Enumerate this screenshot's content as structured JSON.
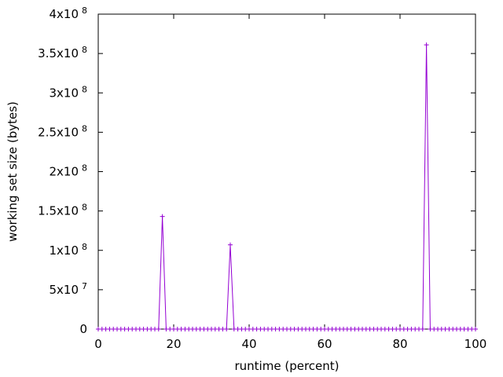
{
  "chart_data": {
    "type": "line",
    "title": "",
    "xlabel": "runtime (percent)",
    "ylabel": "working set size (bytes)",
    "xlim": [
      0,
      100
    ],
    "ylim": [
      0,
      400000000
    ],
    "x_ticks": [
      {
        "value": 0,
        "label": "0"
      },
      {
        "value": 20,
        "label": "20"
      },
      {
        "value": 40,
        "label": "40"
      },
      {
        "value": 60,
        "label": "60"
      },
      {
        "value": 80,
        "label": "80"
      },
      {
        "value": 100,
        "label": "100"
      }
    ],
    "y_ticks": [
      {
        "value": 0,
        "mantissa": "0",
        "exp": ""
      },
      {
        "value": 50000000,
        "mantissa": "5x10",
        "exp": "7"
      },
      {
        "value": 100000000,
        "mantissa": "1x10",
        "exp": "8"
      },
      {
        "value": 150000000,
        "mantissa": "1.5x10",
        "exp": "8"
      },
      {
        "value": 200000000,
        "mantissa": "2x10",
        "exp": "8"
      },
      {
        "value": 250000000,
        "mantissa": "2.5x10",
        "exp": "8"
      },
      {
        "value": 300000000,
        "mantissa": "3x10",
        "exp": "8"
      },
      {
        "value": 350000000,
        "mantissa": "3.5x10",
        "exp": "8"
      },
      {
        "value": 400000000,
        "mantissa": "4x10",
        "exp": "8"
      }
    ],
    "grid": false,
    "legend": "none",
    "series": [
      {
        "color": "#9400d3",
        "marker": "plus",
        "points": [
          [
            0,
            0
          ],
          [
            1,
            0
          ],
          [
            2,
            0
          ],
          [
            3,
            0
          ],
          [
            4,
            0
          ],
          [
            5,
            0
          ],
          [
            6,
            0
          ],
          [
            7,
            0
          ],
          [
            8,
            0
          ],
          [
            9,
            0
          ],
          [
            10,
            0
          ],
          [
            11,
            0
          ],
          [
            12,
            0
          ],
          [
            13,
            0
          ],
          [
            14,
            0
          ],
          [
            15,
            0
          ],
          [
            16,
            0
          ],
          [
            17,
            143000000
          ],
          [
            18,
            0
          ],
          [
            19,
            0
          ],
          [
            20,
            0
          ],
          [
            21,
            0
          ],
          [
            22,
            0
          ],
          [
            23,
            0
          ],
          [
            24,
            0
          ],
          [
            25,
            0
          ],
          [
            26,
            0
          ],
          [
            27,
            0
          ],
          [
            28,
            0
          ],
          [
            29,
            0
          ],
          [
            30,
            0
          ],
          [
            31,
            0
          ],
          [
            32,
            0
          ],
          [
            33,
            0
          ],
          [
            34,
            0
          ],
          [
            35,
            107000000
          ],
          [
            36,
            0
          ],
          [
            37,
            0
          ],
          [
            38,
            0
          ],
          [
            39,
            0
          ],
          [
            40,
            0
          ],
          [
            41,
            0
          ],
          [
            42,
            0
          ],
          [
            43,
            0
          ],
          [
            44,
            0
          ],
          [
            45,
            0
          ],
          [
            46,
            0
          ],
          [
            47,
            0
          ],
          [
            48,
            0
          ],
          [
            49,
            0
          ],
          [
            50,
            0
          ],
          [
            51,
            0
          ],
          [
            52,
            0
          ],
          [
            53,
            0
          ],
          [
            54,
            0
          ],
          [
            55,
            0
          ],
          [
            56,
            0
          ],
          [
            57,
            0
          ],
          [
            58,
            0
          ],
          [
            59,
            0
          ],
          [
            60,
            0
          ],
          [
            61,
            0
          ],
          [
            62,
            0
          ],
          [
            63,
            0
          ],
          [
            64,
            0
          ],
          [
            65,
            0
          ],
          [
            66,
            0
          ],
          [
            67,
            0
          ],
          [
            68,
            0
          ],
          [
            69,
            0
          ],
          [
            70,
            0
          ],
          [
            71,
            0
          ],
          [
            72,
            0
          ],
          [
            73,
            0
          ],
          [
            74,
            0
          ],
          [
            75,
            0
          ],
          [
            76,
            0
          ],
          [
            77,
            0
          ],
          [
            78,
            0
          ],
          [
            79,
            0
          ],
          [
            80,
            0
          ],
          [
            81,
            0
          ],
          [
            82,
            0
          ],
          [
            83,
            0
          ],
          [
            84,
            0
          ],
          [
            85,
            0
          ],
          [
            86,
            0
          ],
          [
            87,
            361000000
          ],
          [
            88,
            0
          ],
          [
            89,
            0
          ],
          [
            90,
            0
          ],
          [
            91,
            0
          ],
          [
            92,
            0
          ],
          [
            93,
            0
          ],
          [
            94,
            0
          ],
          [
            95,
            0
          ],
          [
            96,
            0
          ],
          [
            97,
            0
          ],
          [
            98,
            0
          ],
          [
            99,
            0
          ],
          [
            100,
            0
          ]
        ]
      }
    ]
  }
}
